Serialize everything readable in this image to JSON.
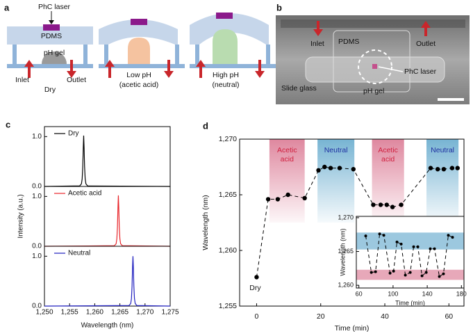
{
  "panel_a": {
    "label": "a",
    "phc_laser": "PhC laser",
    "pdms": "PDMS",
    "ph_gel": "pH gel",
    "inlet": "Inlet",
    "outlet": "Outlet",
    "states": [
      {
        "name": "Dry"
      },
      {
        "name": "Low pH",
        "note": "(acetic acid)"
      },
      {
        "name": "High pH",
        "note": "(neutral)"
      }
    ]
  },
  "panel_b": {
    "label": "b",
    "inlet": "Inlet",
    "pdms": "PDMS",
    "outlet": "Outlet",
    "phc_laser": "PhC laser",
    "slide_glass": "Slide glass",
    "ph_gel": "pH gel"
  },
  "chart_data": [
    {
      "type": "line",
      "label": "c",
      "x": [
        1250,
        1257.0,
        1257.35,
        1257.5,
        1257.62,
        1257.72,
        1257.8,
        1257.88,
        1257.98,
        1258.1,
        1258.25,
        1258.6,
        1275
      ],
      "series": [
        {
          "name": "Dry",
          "color": "#000000",
          "values": [
            0,
            0.01,
            0.05,
            0.15,
            0.4,
            0.78,
            1.02,
            0.78,
            0.4,
            0.15,
            0.05,
            0.01,
            0
          ]
        }
      ],
      "xlim": [
        1250,
        1275
      ],
      "ylim": [
        0,
        1.2
      ],
      "yticks": [
        {
          "value": 0,
          "label": "0.0"
        },
        {
          "value": 1,
          "label": "1.0"
        }
      ],
      "legend": "upper-left"
    },
    {
      "type": "line",
      "ylabel": "Intensity (a.u.)",
      "x": [
        1250,
        1263.9,
        1264.25,
        1264.4,
        1264.52,
        1264.62,
        1264.7,
        1264.78,
        1264.88,
        1265.0,
        1265.15,
        1265.5,
        1275
      ],
      "series": [
        {
          "name": "Acetic acid",
          "color": "#e8262b",
          "values": [
            0,
            0.01,
            0.05,
            0.15,
            0.4,
            0.78,
            1.02,
            0.78,
            0.4,
            0.15,
            0.05,
            0.01,
            0
          ]
        }
      ],
      "xlim": [
        1250,
        1275
      ],
      "ylim": [
        0,
        1.2
      ],
      "yticks": [
        {
          "value": 0,
          "label": "0.0"
        },
        {
          "value": 1,
          "label": "1.0"
        }
      ],
      "legend": "upper-left"
    },
    {
      "type": "line",
      "xlabel": "Wavelength (nm)",
      "x": [
        1250,
        1266.8,
        1267.15,
        1267.3,
        1267.42,
        1267.52,
        1267.6,
        1267.68,
        1267.78,
        1267.9,
        1268.05,
        1268.4,
        1275
      ],
      "series": [
        {
          "name": "Neutral",
          "color": "#1f1fbf",
          "values": [
            0,
            0.01,
            0.05,
            0.15,
            0.4,
            0.78,
            1.0,
            0.78,
            0.4,
            0.15,
            0.05,
            0.01,
            0
          ]
        }
      ],
      "xlim": [
        1250,
        1275
      ],
      "ylim": [
        0,
        1.2
      ],
      "yticks": [
        {
          "value": 0,
          "label": "0.0"
        },
        {
          "value": 1,
          "label": "1.0"
        }
      ],
      "xticks": [
        {
          "value": 1250,
          "label": "1,250"
        },
        {
          "value": 1255,
          "label": "1,255"
        },
        {
          "value": 1260,
          "label": "1,260"
        },
        {
          "value": 1265,
          "label": "1,265"
        },
        {
          "value": 1270,
          "label": "1,270"
        },
        {
          "value": 1275,
          "label": "1,275"
        }
      ],
      "legend": "upper-left"
    },
    {
      "type": "line",
      "label": "d",
      "xlabel": "Time (min)",
      "ylabel": "Wavelength (nm)",
      "color": "#000000",
      "dashed": true,
      "annotation": "Dry",
      "x": [
        0,
        3.6,
        6.6,
        9.8,
        15,
        19.3,
        21.2,
        23.1,
        25.9,
        30.2,
        36.4,
        38.7,
        40.6,
        42.4,
        45.1,
        54.3,
        56.5,
        58.4,
        61,
        62.7
      ],
      "values": [
        1257.6,
        1264.6,
        1264.6,
        1265,
        1264.7,
        1267.2,
        1267.5,
        1267.4,
        1267.4,
        1267.3,
        1264.1,
        1264.1,
        1264.1,
        1263.9,
        1264.1,
        1267.4,
        1267.3,
        1267.3,
        1267.4,
        1267.4
      ],
      "xlim": [
        -5.3,
        64.7
      ],
      "ylim": [
        1255,
        1270
      ],
      "xticks": [
        0,
        20,
        40,
        60
      ],
      "yticks": [
        {
          "value": 1255,
          "label": "1,255"
        },
        {
          "value": 1260,
          "label": "1,260"
        },
        {
          "value": 1265,
          "label": "1,265"
        },
        {
          "value": 1270,
          "label": "1,270"
        }
      ],
      "bands": [
        {
          "label_lines": [
            "Acetic",
            "acid"
          ],
          "start": 4,
          "end": 15,
          "color": "#d4607f",
          "text_color": "#d0203f"
        },
        {
          "label_lines": [
            "Neutral"
          ],
          "start": 19,
          "end": 30.5,
          "color": "#4a9bc4",
          "text_color": "#1f2fa0"
        },
        {
          "label_lines": [
            "Acetic",
            "acid"
          ],
          "start": 36,
          "end": 46,
          "color": "#d4607f",
          "text_color": "#d0203f"
        },
        {
          "label_lines": [
            "Neutral"
          ],
          "start": 53,
          "end": 63,
          "color": "#4a9bc4",
          "text_color": "#1f2fa0"
        }
      ]
    },
    {
      "type": "line",
      "inset": true,
      "xlabel": "Time (min)",
      "ylabel": "Wavelength (nm)",
      "color": "#000000",
      "dashed": true,
      "x": [
        68,
        74.6,
        79.5,
        84.3,
        89.2,
        96.5,
        100.6,
        104.6,
        109.5,
        114.4,
        120.1,
        124.1,
        129,
        133.9,
        138.8,
        143.6,
        148.5,
        154.2,
        159,
        164.7,
        169.6
      ],
      "values": [
        1267.3,
        1261.9,
        1262.0,
        1267.6,
        1267.4,
        1261.8,
        1262.1,
        1266.4,
        1266.1,
        1261.5,
        1261.9,
        1265.7,
        1265.7,
        1261.4,
        1261.9,
        1265.4,
        1265.4,
        1261.3,
        1261.7,
        1267.4,
        1267.1
      ],
      "xlim": [
        57,
        183
      ],
      "ylim": [
        1259.6,
        1270.2
      ],
      "xticks": [
        60,
        100,
        140,
        180
      ],
      "yticks": [
        {
          "value": 1260,
          "label": "1,260"
        },
        {
          "value": 1265,
          "label": "1,265"
        },
        {
          "value": 1270,
          "label": "1,270"
        }
      ],
      "ybands": [
        {
          "start": 1265.3,
          "end": 1267.8,
          "color": "#4a9bc4"
        },
        {
          "start": 1260.8,
          "end": 1262.3,
          "color": "#d4607f"
        }
      ]
    }
  ]
}
